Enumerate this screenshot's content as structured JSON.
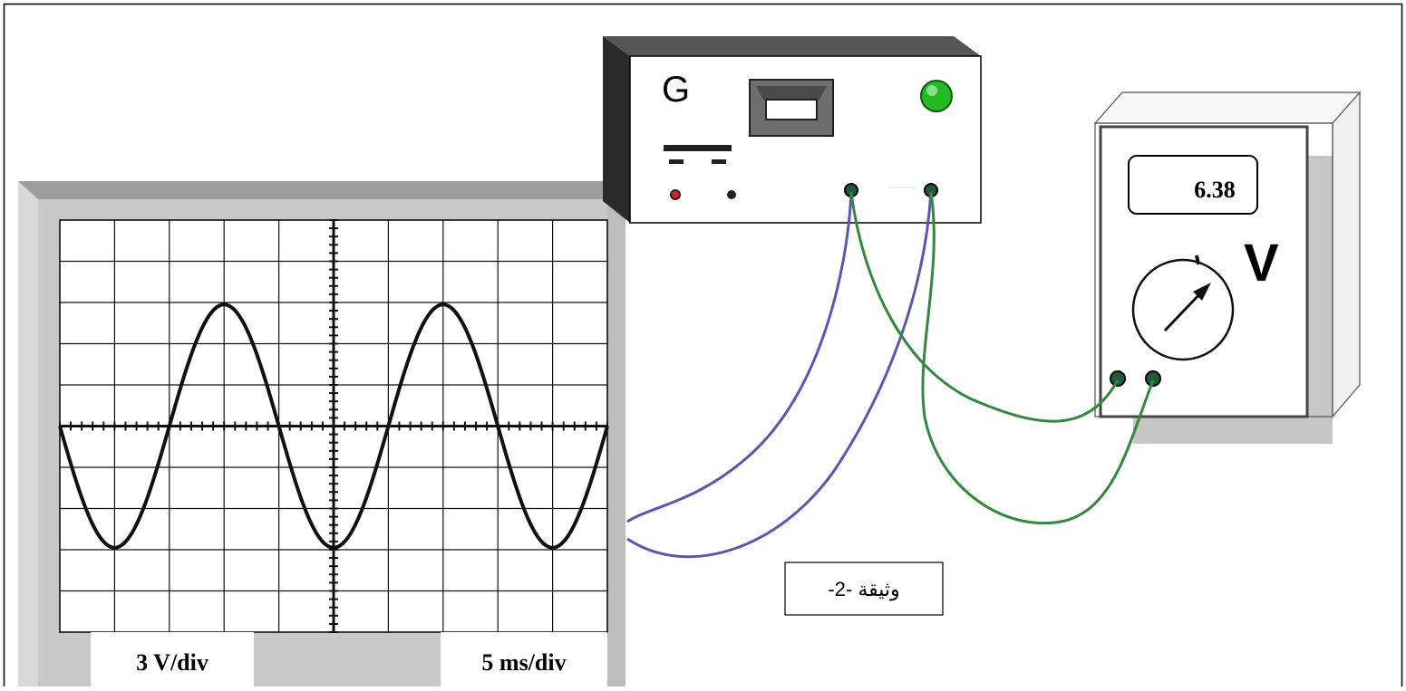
{
  "oscilloscope": {
    "vertical_sensitivity": "3 V/div",
    "time_base": "5 ms/div",
    "grid": {
      "columns": 10,
      "rows": 10
    },
    "signal": {
      "type": "sinusoidal",
      "amplitude_divisions": 4,
      "period_divisions": 4,
      "initial_phase": "maximum at left edge? no — starts at zero going down"
    }
  },
  "generator": {
    "label": "G",
    "indicator_color": "#22bb22"
  },
  "voltmeter": {
    "reading": "6.38",
    "unit": "V"
  },
  "caption": "وثيقة -2-",
  "colors": {
    "blue_wire": "#5a55b8",
    "green_wire": "#2e8b3a",
    "screen_frame": "#c8c8c8"
  }
}
